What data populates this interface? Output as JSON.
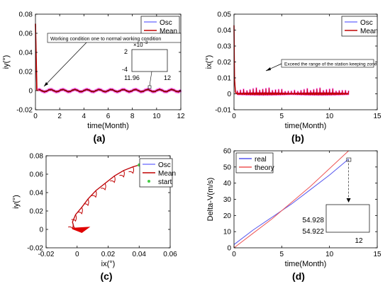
{
  "chart_data": [
    {
      "panel": "(a)",
      "type": "line",
      "xlabel": "time(Month)",
      "ylabel": "iy(°)",
      "xlim": [
        0,
        12
      ],
      "ylim": [
        -0.02,
        0.08
      ],
      "xticks": [
        "0",
        "2",
        "4",
        "6",
        "8",
        "10",
        "12"
      ],
      "yticks": [
        "-0.02",
        "0",
        "0.02",
        "0.04",
        "0.06",
        "0.08"
      ],
      "grid": false,
      "legend": {
        "placement": "top-right",
        "entries": [
          "Osc",
          "Mean"
        ]
      },
      "series": [
        {
          "name": "Osc",
          "color": "#7f7fff",
          "x": [
            0,
            0.1,
            0.2,
            0.5,
            1,
            2,
            3,
            4,
            5,
            6,
            7,
            8,
            9,
            10,
            11,
            12
          ],
          "y": [
            0.07,
            0.002,
            0.0,
            0.0,
            0.0,
            0.0,
            0.0,
            0.0,
            0.0,
            0.0,
            0.0,
            0.0,
            0.0,
            0.0,
            0.0,
            0.0
          ]
        },
        {
          "name": "Mean",
          "color": "#c00000",
          "x": [
            0,
            0.1,
            0.2,
            0.5,
            1,
            2,
            3,
            4,
            5,
            6,
            7,
            8,
            9,
            10,
            11,
            12
          ],
          "y": [
            0.07,
            0.002,
            0.0,
            0.0,
            0.0,
            0.0,
            0.0,
            0.0,
            0.0,
            0.0,
            0.0,
            0.0,
            0.0,
            0.0,
            0.0,
            0.0
          ]
        }
      ],
      "annotation": "Working condition one to normal working condition",
      "inset": {
        "xlim": [
          11.96,
          12
        ],
        "ylim": [
          -0.004,
          0.002
        ],
        "xticks": [
          "11.96",
          "12"
        ],
        "yticks": [
          "2",
          "-4"
        ],
        "exponent": "×10",
        "exponent_power": "-3"
      },
      "caption": "(a)"
    },
    {
      "panel": "(b)",
      "type": "line",
      "xlabel": "time(Month)",
      "ylabel": "ix(°)",
      "xlim": [
        0,
        15
      ],
      "ylim": [
        -0.01,
        0.05
      ],
      "xticks": [
        "0",
        "5",
        "10",
        "15"
      ],
      "yticks": [
        "-0.01",
        "0",
        "0.01",
        "0.02",
        "0.03",
        "0.04",
        "0.05"
      ],
      "grid": false,
      "legend": {
        "placement": "top-right",
        "entries": [
          "Osc",
          "Mean"
        ]
      },
      "series": [
        {
          "name": "Osc",
          "color": "#7f7fff",
          "x": [
            0,
            0.05,
            0.15,
            0.3,
            12
          ],
          "y": [
            0.043,
            0.01,
            0.001,
            0.0,
            0.0
          ]
        },
        {
          "name": "Mean",
          "color": "#c00000",
          "x": [
            0,
            0.05,
            0.15,
            0.3,
            12
          ],
          "y": [
            0.043,
            0.01,
            0.001,
            0.0,
            0.0
          ]
        }
      ],
      "annotation": "Exceed the range of the station keeping zone",
      "caption": "(b)"
    },
    {
      "panel": "(c)",
      "type": "scatter",
      "xlabel": "ix(°)",
      "ylabel": "iy(°)",
      "xlim": [
        -0.02,
        0.06
      ],
      "ylim": [
        -0.02,
        0.08
      ],
      "xticks": [
        "-0.02",
        "0",
        "0.02",
        "0.04",
        "0.06"
      ],
      "yticks": [
        "-0.02",
        "0",
        "0.02",
        "0.04",
        "0.06",
        "0.08"
      ],
      "grid": false,
      "legend": {
        "placement": "top-right",
        "entries": [
          "Osc",
          "Mean",
          "start"
        ]
      },
      "series": [
        {
          "name": "Osc",
          "color": "#7f7fff",
          "x": [
            0.04,
            0.036,
            0.03,
            0.024,
            0.018,
            0.012,
            0.007,
            0.003,
            -0.001,
            -0.003,
            -0.002,
            0.0
          ],
          "y": [
            0.07,
            0.068,
            0.064,
            0.058,
            0.05,
            0.042,
            0.033,
            0.024,
            0.016,
            0.008,
            0.002,
            0.0
          ]
        },
        {
          "name": "Mean",
          "color": "#c00000",
          "x": [
            0.04,
            0.036,
            0.03,
            0.024,
            0.018,
            0.012,
            0.007,
            0.003,
            -0.001,
            -0.003,
            -0.002,
            0.0
          ],
          "y": [
            0.07,
            0.068,
            0.064,
            0.058,
            0.05,
            0.042,
            0.033,
            0.024,
            0.016,
            0.008,
            0.002,
            0.0
          ]
        },
        {
          "name": "start",
          "color": "#44cc44",
          "x": [
            0.04
          ],
          "y": [
            0.07
          ]
        }
      ],
      "caption": "(c)"
    },
    {
      "panel": "(d)",
      "type": "line",
      "xlabel": "time(Month)",
      "ylabel": "Delta-V(m/s)",
      "xlim": [
        0,
        15
      ],
      "ylim": [
        0,
        60
      ],
      "xticks": [
        "0",
        "5",
        "10",
        "15"
      ],
      "yticks": [
        "0",
        "10",
        "20",
        "30",
        "40",
        "50",
        "60"
      ],
      "grid": false,
      "legend": {
        "placement": "top-left",
        "entries": [
          "real",
          "theory"
        ]
      },
      "series": [
        {
          "name": "real",
          "color": "#5555ee",
          "x": [
            0,
            2,
            4,
            6,
            8,
            10,
            12
          ],
          "y": [
            2,
            11,
            19,
            27,
            36,
            45,
            54.9
          ]
        },
        {
          "name": "theory",
          "color": "#ee5555",
          "x": [
            0,
            2,
            4,
            6,
            8,
            10,
            12
          ],
          "y": [
            0,
            9,
            18,
            28,
            38,
            49,
            60
          ]
        }
      ],
      "inset": {
        "ylim": [
          54.922,
          54.928
        ],
        "yticks": [
          "54.928",
          "54.922"
        ],
        "xticks": [
          "12"
        ]
      },
      "caption": "(d)"
    }
  ]
}
